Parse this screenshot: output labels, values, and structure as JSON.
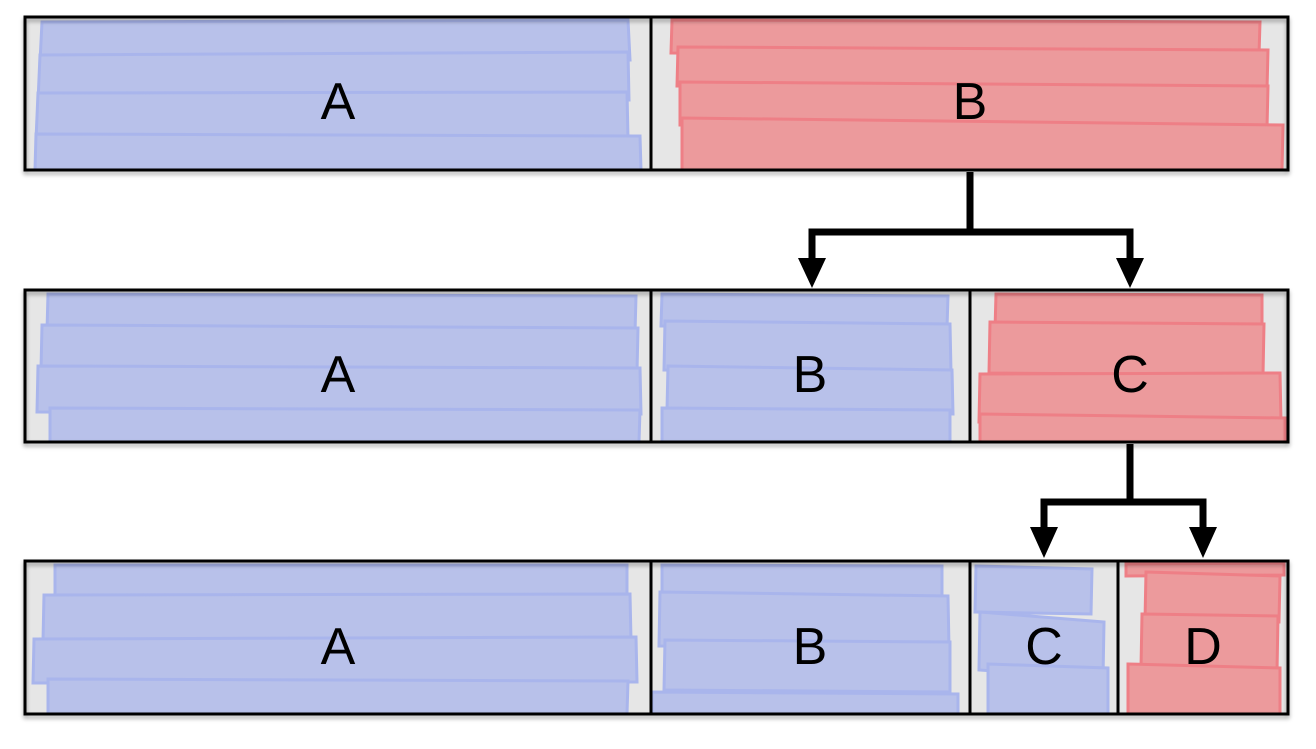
{
  "rows": [
    {
      "segments": [
        {
          "label": "A",
          "fill": "blue"
        },
        {
          "label": "B",
          "fill": "red"
        }
      ]
    },
    {
      "segments": [
        {
          "label": "A",
          "fill": "blue"
        },
        {
          "label": "B",
          "fill": "blue"
        },
        {
          "label": "C",
          "fill": "red"
        }
      ]
    },
    {
      "segments": [
        {
          "label": "A",
          "fill": "blue"
        },
        {
          "label": "B",
          "fill": "blue"
        },
        {
          "label": "C",
          "fill": "blue"
        },
        {
          "label": "D",
          "fill": "red"
        }
      ]
    }
  ],
  "split_arrows": [
    {
      "from": "row-1 segment B",
      "to": [
        "row-2 segment B",
        "row-2 segment C"
      ]
    },
    {
      "from": "row-2 segment C",
      "to": [
        "row-3 segment C",
        "row-3 segment D"
      ]
    }
  ],
  "colors": {
    "blue_fill": "#b8c1ea",
    "blue_stroke": "#a9b5ec",
    "red_fill": "#ec9a9c",
    "red_stroke": "#ee7f86",
    "background_gray": "#e6e6e6",
    "outline": "#000000"
  }
}
